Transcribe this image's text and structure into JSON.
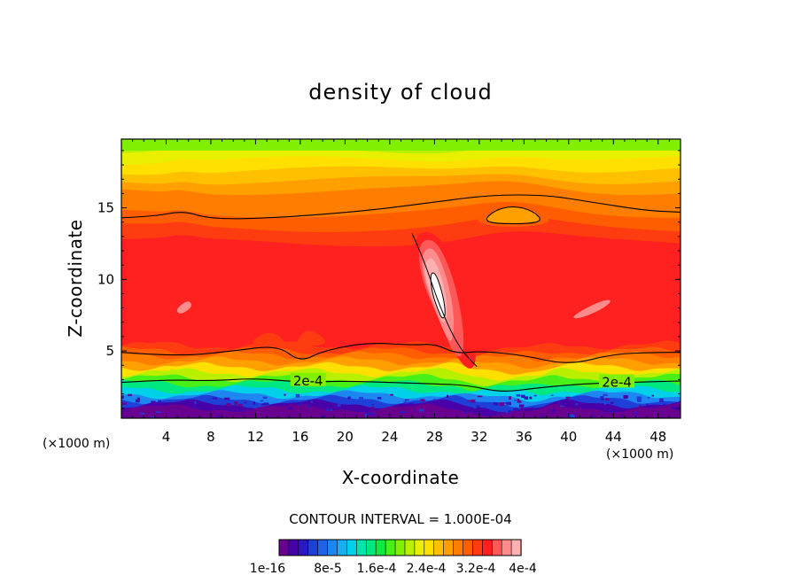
{
  "chart_data": {
    "type": "heatmap",
    "title": "density of cloud",
    "xlabel": "X-coordinate",
    "ylabel": "Z-coordinate",
    "x_unit": "(×1000 m)",
    "z_unit": "(×1000 m)",
    "xlim": [
      0,
      50
    ],
    "ylim": [
      0.3,
      19.8
    ],
    "x_ticks": [
      4,
      8,
      12,
      16,
      20,
      24,
      28,
      32,
      36,
      40,
      44,
      48
    ],
    "y_ticks": [
      5,
      10,
      15
    ],
    "contour_interval_text": "CONTOUR INTERVAL = 1.000E-04",
    "contour_labels": [
      "2e-4",
      "2e-4"
    ],
    "colorbar": {
      "tick_labels": [
        "1e-16",
        "8e-5",
        "1.6e-4",
        "2.4e-4",
        "3.2e-4",
        "4e-4"
      ],
      "colors": [
        "#6a0090",
        "#4800a8",
        "#2a18c0",
        "#1f40d8",
        "#1f62e8",
        "#1e86f0",
        "#14b0f0",
        "#00d0e8",
        "#00e4b0",
        "#00e880",
        "#10e840",
        "#48f018",
        "#80f000",
        "#b8f000",
        "#e8f000",
        "#ffe000",
        "#ffc000",
        "#ffa000",
        "#ff7e00",
        "#ff5e00",
        "#ff3c10",
        "#ff2020",
        "#ff5858",
        "#ff8c8c",
        "#ffb0b0"
      ]
    }
  }
}
